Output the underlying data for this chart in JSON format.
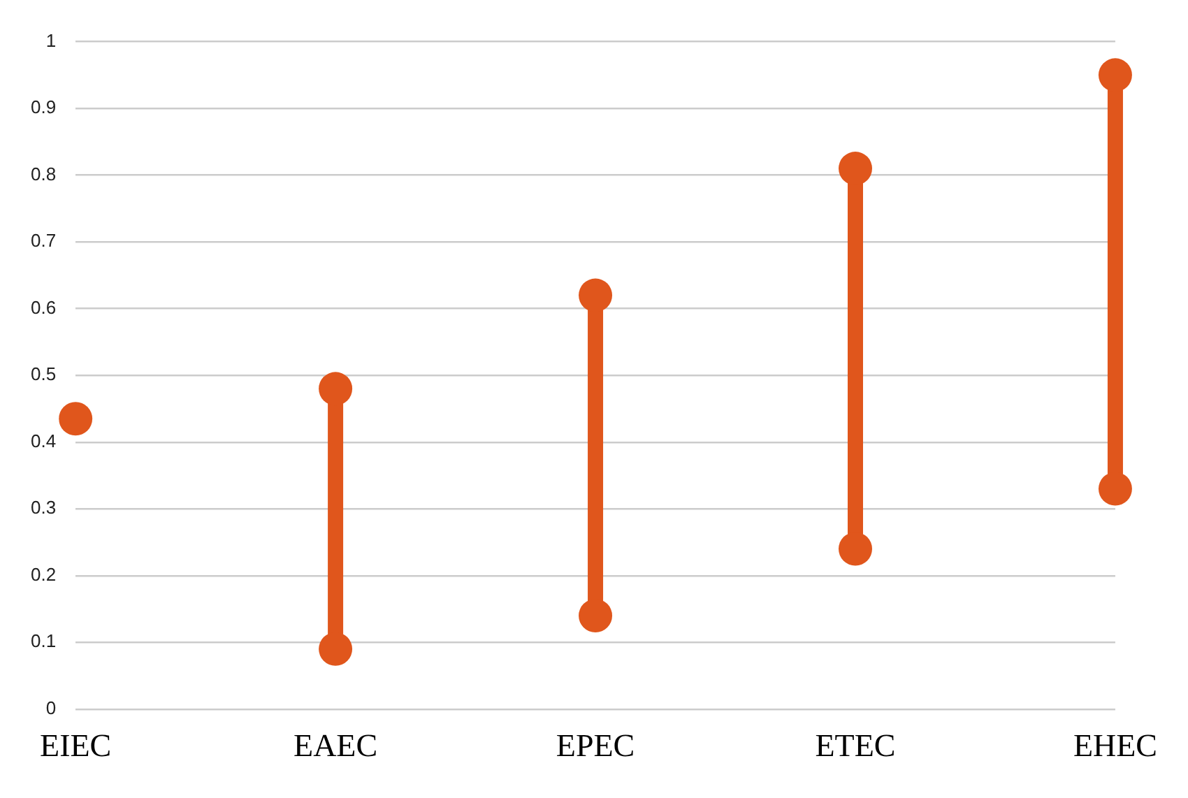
{
  "chart_data": {
    "type": "line",
    "categories": [
      "EIEC",
      "EAEC",
      "EPEC",
      "ETEC",
      "EHEC"
    ],
    "series": [
      {
        "color": "#e0561c",
        "x": [
          "EIEC"
        ],
        "values": [
          0.435
        ]
      },
      {
        "color": "#e0561c",
        "x": [
          "EAEC",
          "EAEC"
        ],
        "values": [
          0.09,
          0.48
        ]
      },
      {
        "color": "#e0561c",
        "x": [
          "EPEC",
          "EPEC"
        ],
        "values": [
          0.14,
          0.62
        ]
      },
      {
        "color": "#e0561c",
        "x": [
          "ETEC",
          "ETEC"
        ],
        "values": [
          0.24,
          0.81
        ]
      },
      {
        "color": "#e0561c",
        "x": [
          "EHEC",
          "EHEC"
        ],
        "values": [
          0.33,
          0.95
        ]
      }
    ],
    "marker": "circle",
    "line_style": "solid",
    "ylim": [
      0,
      1
    ],
    "yticks": [
      0,
      0.1,
      0.2,
      0.3,
      0.4,
      0.5,
      0.6,
      0.7,
      0.8,
      0.9,
      1
    ],
    "grid": "y",
    "legend": false
  }
}
